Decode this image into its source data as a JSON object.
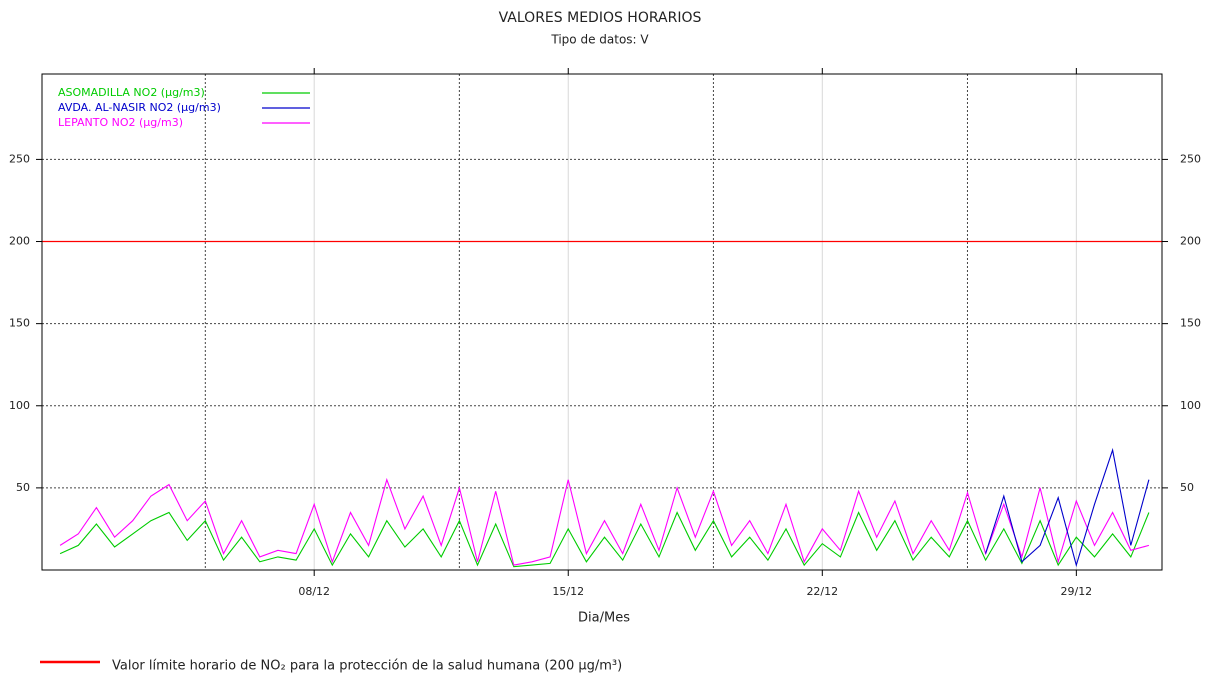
{
  "chart_data": {
    "type": "line",
    "title": "VALORES MEDIOS HORARIOS",
    "subtitle": "Tipo de datos: V",
    "xlabel": "Dia/Mes",
    "x": [
      1,
      1.5,
      2,
      2.5,
      3,
      3.5,
      4,
      4.5,
      5,
      5.5,
      6,
      6.5,
      7,
      7.5,
      8,
      8.5,
      9,
      9.5,
      10,
      10.5,
      11,
      11.5,
      12,
      12.5,
      13,
      13.5,
      14,
      14.5,
      15,
      15.5,
      16,
      16.5,
      17,
      17.5,
      18,
      18.5,
      19,
      19.5,
      20,
      20.5,
      21,
      21.5,
      22,
      22.5,
      23,
      23.5,
      24,
      24.5,
      25,
      25.5,
      26,
      26.5,
      27,
      27.5,
      28,
      28.5,
      29,
      29.5,
      30,
      30.5,
      31
    ],
    "series": [
      {
        "name": "ASOMADILLA NO2 (µg/m3)",
        "color": "#00cc00",
        "values": [
          10,
          15,
          28,
          14,
          22,
          30,
          35,
          18,
          30,
          6,
          20,
          5,
          8,
          6,
          25,
          3,
          22,
          8,
          30,
          14,
          25,
          8,
          30,
          3,
          28,
          2,
          3,
          4,
          25,
          5,
          20,
          6,
          28,
          8,
          35,
          12,
          30,
          8,
          20,
          6,
          25,
          3,
          16,
          8,
          35,
          12,
          30,
          6,
          20,
          8,
          30,
          6,
          25,
          4,
          30,
          3,
          20,
          8,
          22,
          8,
          35
        ]
      },
      {
        "name": "AVDA. AL-NASIR NO2 (µg/m3)",
        "color": "#0000cc",
        "values": [
          null,
          null,
          null,
          null,
          null,
          null,
          null,
          null,
          null,
          null,
          null,
          null,
          null,
          null,
          null,
          null,
          null,
          null,
          null,
          null,
          null,
          null,
          null,
          null,
          null,
          null,
          null,
          null,
          null,
          null,
          null,
          null,
          null,
          null,
          null,
          null,
          null,
          null,
          null,
          null,
          null,
          null,
          null,
          null,
          null,
          null,
          null,
          null,
          null,
          null,
          null,
          10,
          45,
          5,
          15,
          44,
          3,
          40,
          73,
          15,
          55
        ]
      },
      {
        "name": "LEPANTO NO2 (µg/m3)",
        "color": "#ff00ff",
        "values": [
          15,
          22,
          38,
          20,
          30,
          45,
          52,
          30,
          42,
          10,
          30,
          8,
          12,
          10,
          40,
          5,
          35,
          15,
          55,
          25,
          45,
          15,
          50,
          5,
          48,
          3,
          5,
          8,
          55,
          10,
          30,
          10,
          40,
          12,
          50,
          20,
          48,
          15,
          30,
          10,
          40,
          5,
          25,
          12,
          48,
          20,
          42,
          10,
          30,
          12,
          47,
          10,
          40,
          8,
          50,
          5,
          42,
          15,
          35,
          12,
          15
        ]
      }
    ],
    "xlim": [
      0.5,
      31.36
    ],
    "xticks": [
      {
        "value": 8,
        "label": "08/12"
      },
      {
        "value": 15,
        "label": "15/12"
      },
      {
        "value": 22,
        "label": "22/12"
      },
      {
        "value": 29,
        "label": "29/12"
      }
    ],
    "xgrid": [
      5,
      12,
      19,
      26
    ],
    "ylim": [
      0,
      302
    ],
    "yticks": [
      50,
      100,
      150,
      200,
      250
    ],
    "grid": true,
    "legend": "upper left",
    "reference_line": {
      "value": 200,
      "color": "#ff0000",
      "label": "Valor límite horario de NO₂ para la protección de la salud humana (200 µg/m³)"
    }
  }
}
